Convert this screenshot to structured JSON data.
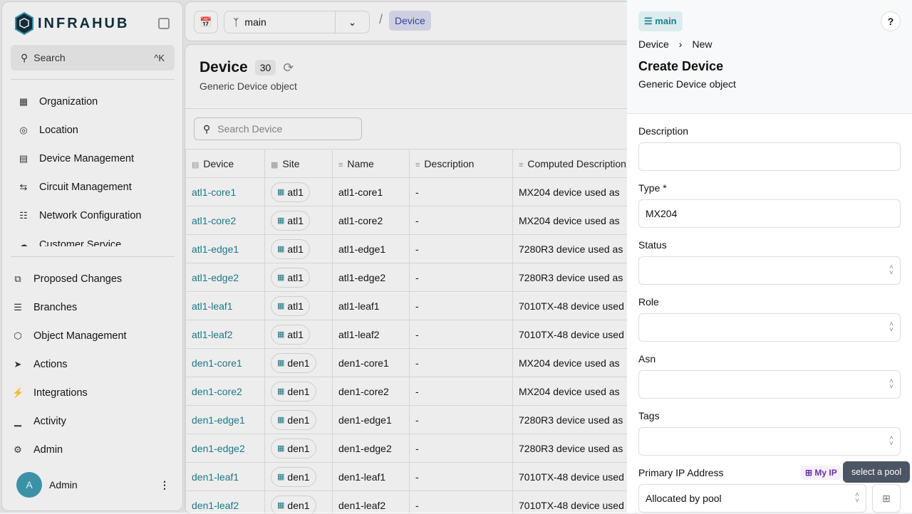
{
  "app": {
    "logo": "INFRAHUB",
    "search": "Search",
    "shortcut": "^K"
  },
  "sidebar": {
    "items": [
      {
        "label": "Organization",
        "icon": "building-icon"
      },
      {
        "label": "Location",
        "icon": "map-pin-icon"
      },
      {
        "label": "Device Management",
        "icon": "server-icon"
      },
      {
        "label": "Circuit Management",
        "icon": "circuit-icon"
      },
      {
        "label": "Network Configuration",
        "icon": "network-icon"
      },
      {
        "label": "Customer Service",
        "icon": "customer-icon"
      }
    ],
    "bottom": [
      {
        "label": "Proposed Changes",
        "icon": "proposed-changes-icon"
      },
      {
        "label": "Branches",
        "icon": "layers-icon"
      },
      {
        "label": "Object Management",
        "icon": "cube-icon"
      },
      {
        "label": "Actions",
        "icon": "rocket-icon"
      },
      {
        "label": "Integrations",
        "icon": "plug-icon"
      },
      {
        "label": "Activity",
        "icon": "chart-icon"
      },
      {
        "label": "Admin",
        "icon": "gear-icon"
      }
    ],
    "user": {
      "initial": "A",
      "name": "Admin"
    }
  },
  "topbar": {
    "branch": "main",
    "breadcrumb": "Device"
  },
  "main": {
    "title": "Device",
    "count": "30",
    "subtitle": "Generic Device object",
    "search_placeholder": "Search Device",
    "columns": [
      "Device",
      "Site",
      "Name",
      "Description",
      "Computed Description"
    ],
    "rows": [
      [
        "atl1-core1",
        "atl1",
        "atl1-core1",
        "-",
        "MX204 device used as"
      ],
      [
        "atl1-core2",
        "atl1",
        "atl1-core2",
        "-",
        "MX204 device used as"
      ],
      [
        "atl1-edge1",
        "atl1",
        "atl1-edge1",
        "-",
        "7280R3 device used as"
      ],
      [
        "atl1-edge2",
        "atl1",
        "atl1-edge2",
        "-",
        "7280R3 device used as"
      ],
      [
        "atl1-leaf1",
        "atl1",
        "atl1-leaf1",
        "-",
        "7010TX-48 device used"
      ],
      [
        "atl1-leaf2",
        "atl1",
        "atl1-leaf2",
        "-",
        "7010TX-48 device used"
      ],
      [
        "den1-core1",
        "den1",
        "den1-core1",
        "-",
        "MX204 device used as"
      ],
      [
        "den1-core2",
        "den1",
        "den1-core2",
        "-",
        "MX204 device used as"
      ],
      [
        "den1-edge1",
        "den1",
        "den1-edge1",
        "-",
        "7280R3 device used as"
      ],
      [
        "den1-edge2",
        "den1",
        "den1-edge2",
        "-",
        "7280R3 device used as"
      ],
      [
        "den1-leaf1",
        "den1",
        "den1-leaf1",
        "-",
        "7010TX-48 device used"
      ],
      [
        "den1-leaf2",
        "den1",
        "den1-leaf2",
        "-",
        "7010TX-48 device used"
      ]
    ]
  },
  "panel": {
    "branch": "main",
    "help": "?",
    "crumb": [
      "Device",
      "New"
    ],
    "title": "Create Device",
    "subtitle": "Generic Device object",
    "fields": [
      {
        "label": "Description",
        "value": "",
        "select": false
      },
      {
        "label": "Type *",
        "value": "MX204",
        "select": false
      },
      {
        "label": "Status",
        "value": "",
        "select": true
      },
      {
        "label": "Role",
        "value": "",
        "select": true
      },
      {
        "label": "Asn",
        "value": "",
        "select": true
      },
      {
        "label": "Tags",
        "value": "",
        "select": true
      }
    ],
    "primary_ip": {
      "label": "Primary IP Address",
      "pool_badge": "My IP",
      "tooltip": "select a pool",
      "value": "Allocated by pool"
    }
  },
  "colors": {
    "accent": "#1a7f8f",
    "tooltip": "#4b5563",
    "pool": "#6b2fa8"
  }
}
